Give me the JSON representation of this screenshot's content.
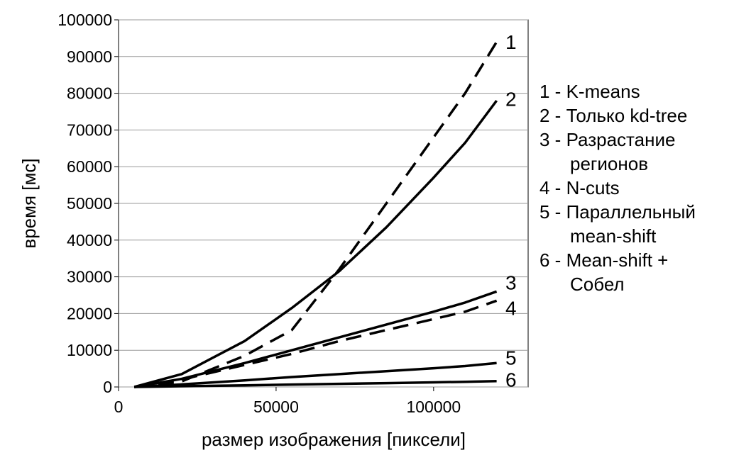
{
  "chart_data": {
    "type": "line",
    "title": "",
    "xlabel": "размер изображения [пиксели]",
    "ylabel": "время [мс]",
    "xlim": [
      0,
      130000
    ],
    "ylim": [
      0,
      100000
    ],
    "xticks": [
      0,
      50000,
      100000
    ],
    "yticks": [
      0,
      10000,
      20000,
      30000,
      40000,
      50000,
      60000,
      70000,
      80000,
      90000,
      100000
    ],
    "grid": "horizontal",
    "legend_position": "right",
    "series": [
      {
        "name": "1",
        "style": "dashed",
        "x": [
          5000,
          20000,
          40000,
          55000,
          70000,
          85000,
          100000,
          110000,
          120000
        ],
        "y": [
          0,
          1500,
          8500,
          15500,
          32000,
          50000,
          68000,
          80000,
          94000
        ]
      },
      {
        "name": "2",
        "style": "solid",
        "x": [
          5000,
          20000,
          40000,
          55000,
          70000,
          85000,
          100000,
          110000,
          120000
        ],
        "y": [
          0,
          3500,
          12500,
          21500,
          31500,
          43500,
          57000,
          66500,
          78000
        ]
      },
      {
        "name": "3",
        "style": "solid",
        "x": [
          5000,
          20000,
          40000,
          55000,
          70000,
          85000,
          100000,
          110000,
          120000
        ],
        "y": [
          0,
          2200,
          6500,
          10000,
          13500,
          17000,
          20500,
          23000,
          26000
        ]
      },
      {
        "name": "4",
        "style": "dashed",
        "x": [
          5000,
          20000,
          40000,
          55000,
          70000,
          85000,
          100000,
          110000,
          120000
        ],
        "y": [
          0,
          2000,
          6000,
          9000,
          12500,
          15500,
          18500,
          20500,
          23500
        ]
      },
      {
        "name": "5",
        "style": "solid",
        "x": [
          5000,
          20000,
          40000,
          55000,
          70000,
          85000,
          100000,
          110000,
          120000
        ],
        "y": [
          0,
          700,
          1800,
          2700,
          3500,
          4300,
          5100,
          5700,
          6500
        ]
      },
      {
        "name": "6",
        "style": "solid",
        "x": [
          5000,
          20000,
          40000,
          55000,
          70000,
          85000,
          100000,
          110000,
          120000
        ],
        "y": [
          0,
          200,
          450,
          650,
          850,
          1050,
          1250,
          1400,
          1600
        ]
      }
    ],
    "end_labels": [
      {
        "text": "1",
        "y": 94000
      },
      {
        "text": "2",
        "y": 78500
      },
      {
        "text": "3",
        "y": 28500
      },
      {
        "text": "4",
        "y": 21500
      },
      {
        "text": "5",
        "y": 8000
      },
      {
        "text": "6",
        "y": 2000
      }
    ],
    "legend": [
      {
        "line1": "1 - K-means"
      },
      {
        "line1": "2 - Только kd-tree"
      },
      {
        "line1": "3 - Разрастание",
        "line2": "регионов"
      },
      {
        "line1": "4 - N-cuts"
      },
      {
        "line1": "5 - Параллельный",
        "line2": "mean-shift"
      },
      {
        "line1": "6 - Mean-shift +",
        "line2": "Собел"
      }
    ]
  }
}
